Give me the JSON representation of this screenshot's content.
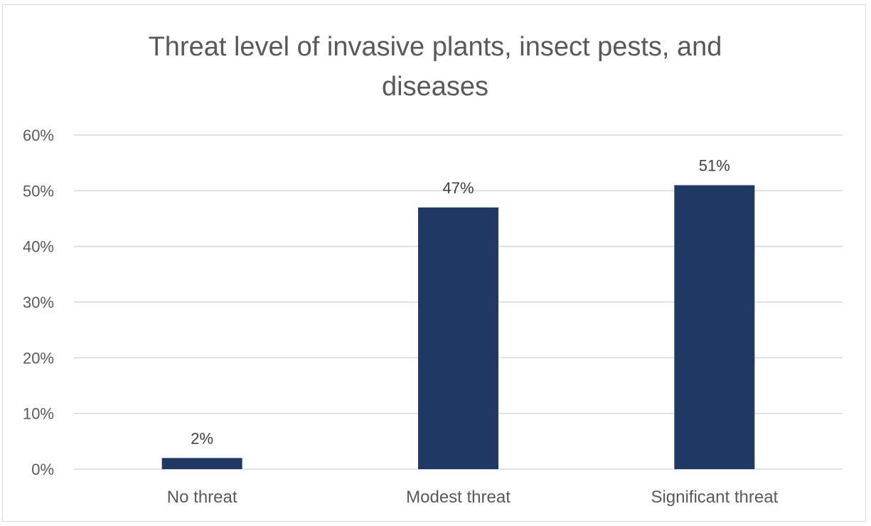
{
  "chart_data": {
    "type": "bar",
    "title_lines": [
      "Threat level of invasive plants, insect pests, and",
      "diseases"
    ],
    "categories": [
      "No threat",
      "Modest threat",
      "Significant threat"
    ],
    "values": [
      0.02,
      0.47,
      0.51
    ],
    "data_labels": [
      "2%",
      "47%",
      "51%"
    ],
    "ylim": [
      0,
      0.6
    ],
    "yticks": [
      0,
      0.1,
      0.2,
      0.3,
      0.4,
      0.5,
      0.6
    ],
    "ytick_labels": [
      "0%",
      "10%",
      "20%",
      "30%",
      "40%",
      "50%",
      "60%"
    ],
    "xlabel": "",
    "ylabel": "",
    "grid": true,
    "legend": "none",
    "colors": {
      "bar": "#203864",
      "grid": "#d9d9d9",
      "text": "#595959",
      "label": "#404040"
    }
  }
}
